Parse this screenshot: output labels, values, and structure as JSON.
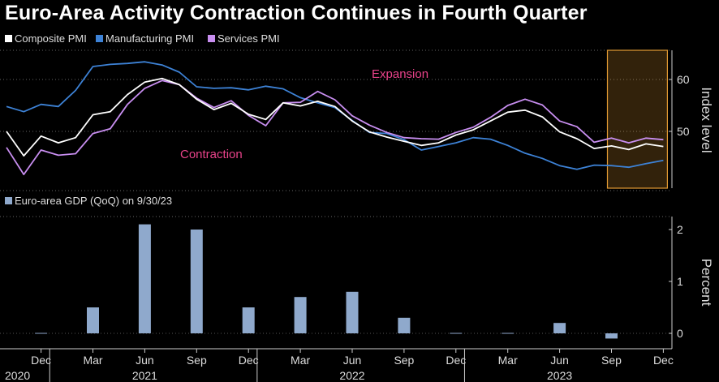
{
  "title": "Euro-Area Activity Contraction Continues in Fourth Quarter",
  "colors": {
    "background": "#000000",
    "composite": "#ffffff",
    "manufacturing": "#3d82d6",
    "services": "#c88ef0",
    "gdp_bar": "#8fa9cc",
    "annotation": "#e8438a",
    "highlight": "#e39b34"
  },
  "chart_data": [
    {
      "type": "line",
      "legend": [
        "Composite PMI",
        "Manufacturing PMI",
        "Services PMI"
      ],
      "ylabel": "Index level",
      "yticks": [
        50,
        60
      ],
      "ylim": [
        40,
        66
      ],
      "annotations": [
        "Expansion",
        "Contraction"
      ],
      "highlight_range": [
        "2023-09",
        "2023-12"
      ],
      "x": [
        "2020-10",
        "2020-11",
        "2020-12",
        "2021-01",
        "2021-02",
        "2021-03",
        "2021-04",
        "2021-05",
        "2021-06",
        "2021-07",
        "2021-08",
        "2021-09",
        "2021-10",
        "2021-11",
        "2021-12",
        "2022-01",
        "2022-02",
        "2022-03",
        "2022-04",
        "2022-05",
        "2022-06",
        "2022-07",
        "2022-08",
        "2022-09",
        "2022-10",
        "2022-11",
        "2022-12",
        "2023-01",
        "2023-02",
        "2023-03",
        "2023-04",
        "2023-05",
        "2023-06",
        "2023-07",
        "2023-08",
        "2023-09",
        "2023-10",
        "2023-11",
        "2023-12"
      ],
      "series": [
        {
          "name": "Composite PMI",
          "values": [
            50.0,
            45.3,
            49.1,
            47.8,
            48.8,
            53.2,
            53.8,
            57.1,
            59.5,
            60.2,
            59.0,
            56.2,
            54.2,
            55.4,
            53.3,
            52.3,
            55.5,
            54.9,
            55.8,
            54.8,
            52.0,
            49.9,
            48.9,
            48.1,
            47.3,
            47.8,
            49.3,
            50.3,
            52.0,
            53.7,
            54.1,
            52.8,
            49.9,
            48.6,
            46.7,
            47.2,
            46.5,
            47.6,
            47.1
          ]
        },
        {
          "name": "Manufacturing PMI",
          "values": [
            54.8,
            53.8,
            55.2,
            54.8,
            57.9,
            62.5,
            62.9,
            63.1,
            63.4,
            62.8,
            61.4,
            58.6,
            58.3,
            58.4,
            58.0,
            58.7,
            58.2,
            56.5,
            55.5,
            54.6,
            52.1,
            49.8,
            49.6,
            48.4,
            46.4,
            47.1,
            47.8,
            48.8,
            48.5,
            47.3,
            45.8,
            44.8,
            43.4,
            42.7,
            43.5,
            43.4,
            43.1,
            43.8,
            44.4
          ]
        },
        {
          "name": "Services PMI",
          "values": [
            46.9,
            41.7,
            46.4,
            45.4,
            45.7,
            49.6,
            50.5,
            55.2,
            58.3,
            59.8,
            59.0,
            56.4,
            54.6,
            55.9,
            53.1,
            51.1,
            55.5,
            55.6,
            57.7,
            56.1,
            53.0,
            51.2,
            49.8,
            48.8,
            48.6,
            48.5,
            49.8,
            50.8,
            52.7,
            55.0,
            56.2,
            55.1,
            52.0,
            50.9,
            47.9,
            48.7,
            47.8,
            48.7,
            48.4
          ]
        }
      ]
    },
    {
      "type": "bar",
      "legend": [
        "Euro-area GDP (QoQ) on 9/30/23"
      ],
      "ylabel": "Percent",
      "yticks": [
        0,
        1,
        2
      ],
      "ylim": [
        -0.3,
        2.3
      ],
      "x": [
        "2020-12",
        "2021-03",
        "2021-06",
        "2021-09",
        "2021-12",
        "2022-03",
        "2022-06",
        "2022-09",
        "2022-12",
        "2023-03",
        "2023-06",
        "2023-09"
      ],
      "values": [
        0.0,
        0.5,
        2.1,
        2.0,
        0.5,
        0.7,
        0.8,
        0.3,
        0.0,
        0.0,
        0.2,
        -0.1
      ]
    }
  ],
  "x_axis": {
    "months": [
      "Dec",
      "Mar",
      "Jun",
      "Sep",
      "Dec",
      "Mar",
      "Jun",
      "Sep",
      "Dec",
      "Mar",
      "Jun",
      "Sep",
      "Dec"
    ],
    "month_dates": [
      "2020-12",
      "2021-03",
      "2021-06",
      "2021-09",
      "2021-12",
      "2022-03",
      "2022-06",
      "2022-09",
      "2022-12",
      "2023-03",
      "2023-06",
      "2023-09",
      "2023-12"
    ],
    "years": [
      "2020",
      "2021",
      "2022",
      "2023"
    ],
    "year_dates": [
      "2020-12",
      "2021-06",
      "2022-06",
      "2023-06"
    ]
  }
}
